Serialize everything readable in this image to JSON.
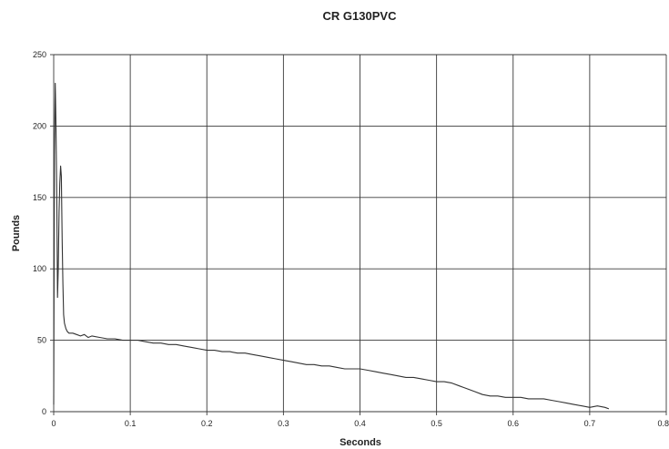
{
  "chart_data": {
    "type": "line",
    "title": "CR G130PVC",
    "xlabel": "Seconds",
    "ylabel": "Pounds",
    "xlim": [
      0,
      0.8
    ],
    "ylim": [
      0,
      250
    ],
    "x_ticks": [
      "0",
      "0.1",
      "0.2",
      "0.3",
      "0.4",
      "0.5",
      "0.6",
      "0.7",
      "0.8"
    ],
    "y_ticks": [
      "0",
      "50",
      "100",
      "150",
      "200",
      "250"
    ],
    "grid": true,
    "legend": "none",
    "line_color": "#333333",
    "series": [
      {
        "x": [
          0.0,
          0.001,
          0.002,
          0.003,
          0.004,
          0.005,
          0.006,
          0.007,
          0.008,
          0.009,
          0.01,
          0.011,
          0.012,
          0.013,
          0.014,
          0.015,
          0.016,
          0.018,
          0.02,
          0.025,
          0.03,
          0.035,
          0.04,
          0.045,
          0.05,
          0.06,
          0.07,
          0.08,
          0.09,
          0.1,
          0.11,
          0.12,
          0.13,
          0.14,
          0.15,
          0.16,
          0.17,
          0.18,
          0.19,
          0.2,
          0.21,
          0.22,
          0.23,
          0.24,
          0.25,
          0.26,
          0.27,
          0.28,
          0.29,
          0.3,
          0.31,
          0.32,
          0.33,
          0.34,
          0.35,
          0.36,
          0.37,
          0.38,
          0.39,
          0.4,
          0.41,
          0.42,
          0.43,
          0.44,
          0.45,
          0.46,
          0.47,
          0.48,
          0.49,
          0.5,
          0.51,
          0.52,
          0.53,
          0.54,
          0.55,
          0.56,
          0.57,
          0.58,
          0.59,
          0.6,
          0.61,
          0.62,
          0.63,
          0.64,
          0.65,
          0.66,
          0.67,
          0.68,
          0.69,
          0.7,
          0.71,
          0.72,
          0.725
        ],
        "values": [
          5,
          180,
          230,
          200,
          150,
          80,
          100,
          140,
          160,
          172,
          165,
          120,
          90,
          68,
          62,
          60,
          58,
          56,
          55,
          55,
          54,
          53,
          54,
          52,
          53,
          52,
          51,
          51,
          50,
          50,
          50,
          49,
          48,
          48,
          47,
          47,
          46,
          45,
          44,
          43,
          43,
          42,
          42,
          41,
          41,
          40,
          39,
          38,
          37,
          36,
          35,
          34,
          33,
          33,
          32,
          32,
          31,
          30,
          30,
          30,
          29,
          28,
          27,
          26,
          25,
          24,
          24,
          23,
          22,
          21,
          21,
          20,
          18,
          16,
          14,
          12,
          11,
          11,
          10,
          10,
          10,
          9,
          9,
          9,
          8,
          7,
          6,
          5,
          4,
          3,
          4,
          3,
          2
        ]
      }
    ]
  }
}
